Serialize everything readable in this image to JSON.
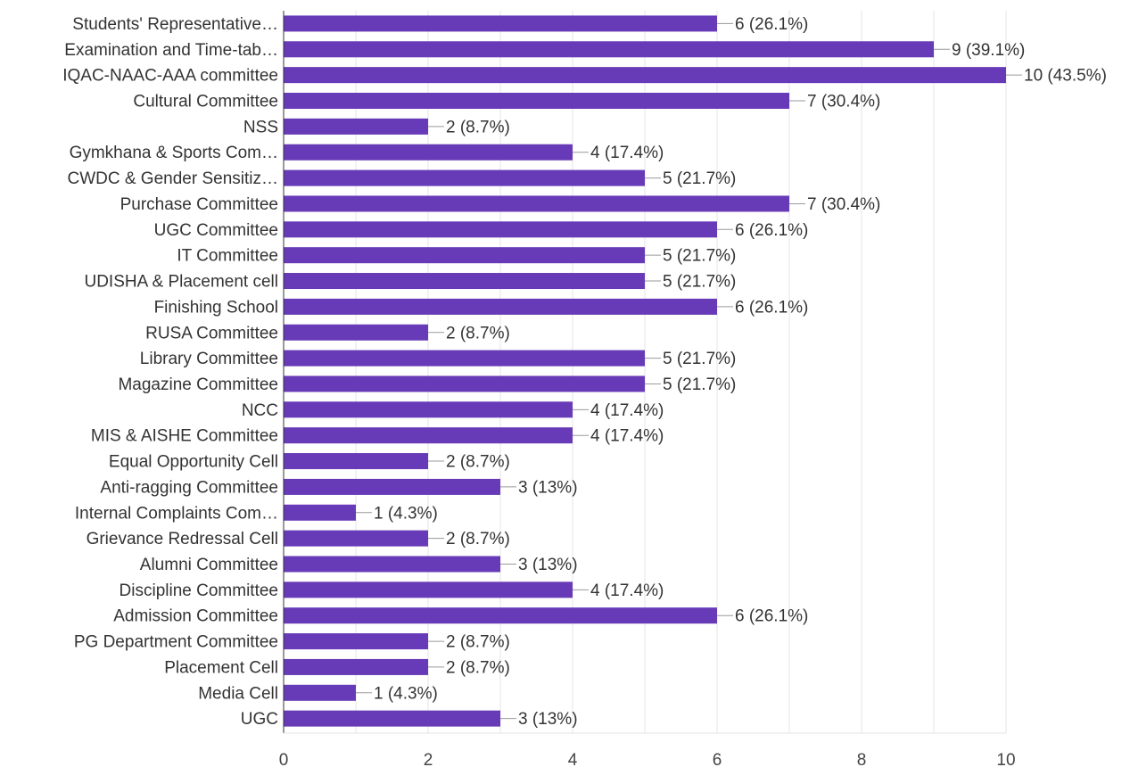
{
  "chart_data": {
    "type": "bar",
    "orientation": "horizontal",
    "title": "",
    "xlabel": "",
    "ylabel": "",
    "xlim": [
      0,
      10
    ],
    "x_ticks": [
      0,
      2,
      4,
      6,
      8,
      10
    ],
    "grid": true,
    "bar_color": "#673ab7",
    "categories": [
      "Students' Representative…",
      "Examination and Time-tab…",
      "IQAC-NAAC-AAA committee",
      "Cultural Committee",
      "NSS",
      "Gymkhana & Sports Com…",
      "CWDC & Gender Sensitiz…",
      "Purchase Committee",
      "UGC Committee",
      "IT Committee",
      "UDISHA & Placement cell",
      "Finishing School",
      "RUSA Committee",
      "Library Committee",
      "Magazine Committee",
      "NCC",
      "MIS & AISHE Committee",
      "Equal Opportunity Cell",
      "Anti-ragging Committee",
      "Internal Complaints Com…",
      "Grievance Redressal Cell",
      "Alumni Committee",
      "Discipline Committee",
      "Admission Committee",
      "PG Department Committee",
      "Placement Cell",
      "Media Cell",
      "UGC"
    ],
    "values": [
      6,
      9,
      10,
      7,
      2,
      4,
      5,
      7,
      6,
      5,
      5,
      6,
      2,
      5,
      5,
      4,
      4,
      2,
      3,
      1,
      2,
      3,
      4,
      6,
      2,
      2,
      1,
      3
    ],
    "data_labels": [
      "6 (26.1%)",
      "9 (39.1%)",
      "10 (43.5%)",
      "7 (30.4%)",
      "2 (8.7%)",
      "4 (17.4%)",
      "5 (21.7%)",
      "7 (30.4%)",
      "6 (26.1%)",
      "5 (21.7%)",
      "5 (21.7%)",
      "6 (26.1%)",
      "2 (8.7%)",
      "5 (21.7%)",
      "5 (21.7%)",
      "4 (17.4%)",
      "4 (17.4%)",
      "2 (8.7%)",
      "3 (13%)",
      "1 (4.3%)",
      "2 (8.7%)",
      "3 (13%)",
      "4 (17.4%)",
      "6 (26.1%)",
      "2 (8.7%)",
      "2 (8.7%)",
      "1 (4.3%)",
      "3 (13%)"
    ]
  }
}
